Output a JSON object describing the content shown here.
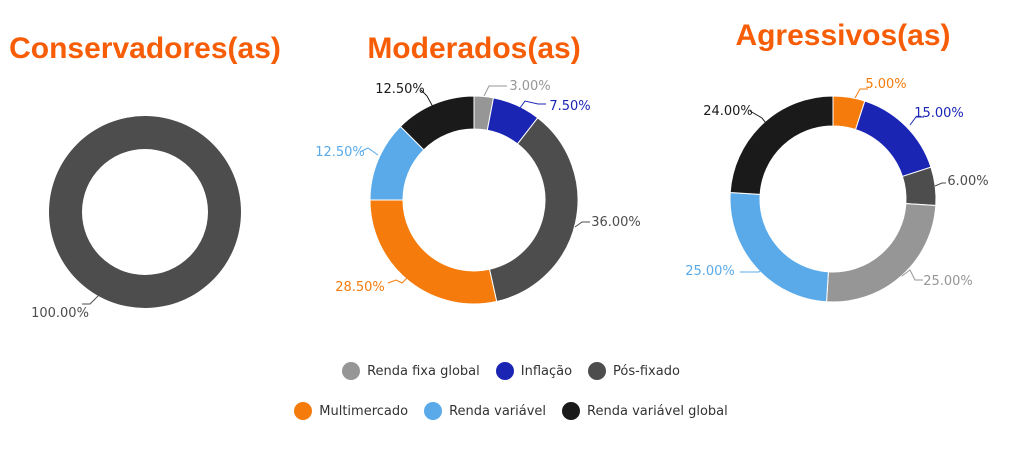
{
  "colors": {
    "Renda fixa global": "#969696",
    "Inflação": "#1b25b4",
    "Pós-fixado": "#4d4d4d",
    "Multimercado": "#f57c0c",
    "Renda variável": "#5aaae9",
    "Renda variável global": "#1a1a1a",
    "title": "#f75d06"
  },
  "legend": {
    "row1": [
      "Renda fixa global",
      "Inflação",
      "Pós-fixado"
    ],
    "row2": [
      "Multimercado",
      "Renda variável",
      "Renda variável global"
    ]
  },
  "chart_data": [
    {
      "type": "pie",
      "title": "Conservadores(as)",
      "categories": [
        "Pós-fixado"
      ],
      "values": [
        100.0
      ],
      "labels": [
        "100.00%"
      ]
    },
    {
      "type": "pie",
      "title": "Moderados(as)",
      "categories": [
        "Renda fixa global",
        "Inflação",
        "Pós-fixado",
        "Multimercado",
        "Renda variável",
        "Renda variável global"
      ],
      "values": [
        3.0,
        7.5,
        36.0,
        28.5,
        12.5,
        12.5
      ],
      "labels": [
        "3.00%",
        "7.50%",
        "36.00%",
        "28.50%",
        "12.50%",
        "12.50%"
      ]
    },
    {
      "type": "pie",
      "title": "Agressivos(as)",
      "categories": [
        "Multimercado",
        "Inflação",
        "Pós-fixado",
        "Renda fixa global",
        "Renda variável",
        "Renda variável global"
      ],
      "values": [
        5.0,
        15.0,
        6.0,
        25.0,
        25.0,
        24.0
      ],
      "labels": [
        "5.00%",
        "15.00%",
        "6.00%",
        "25.00%",
        "25.00%",
        "24.00%"
      ]
    }
  ]
}
